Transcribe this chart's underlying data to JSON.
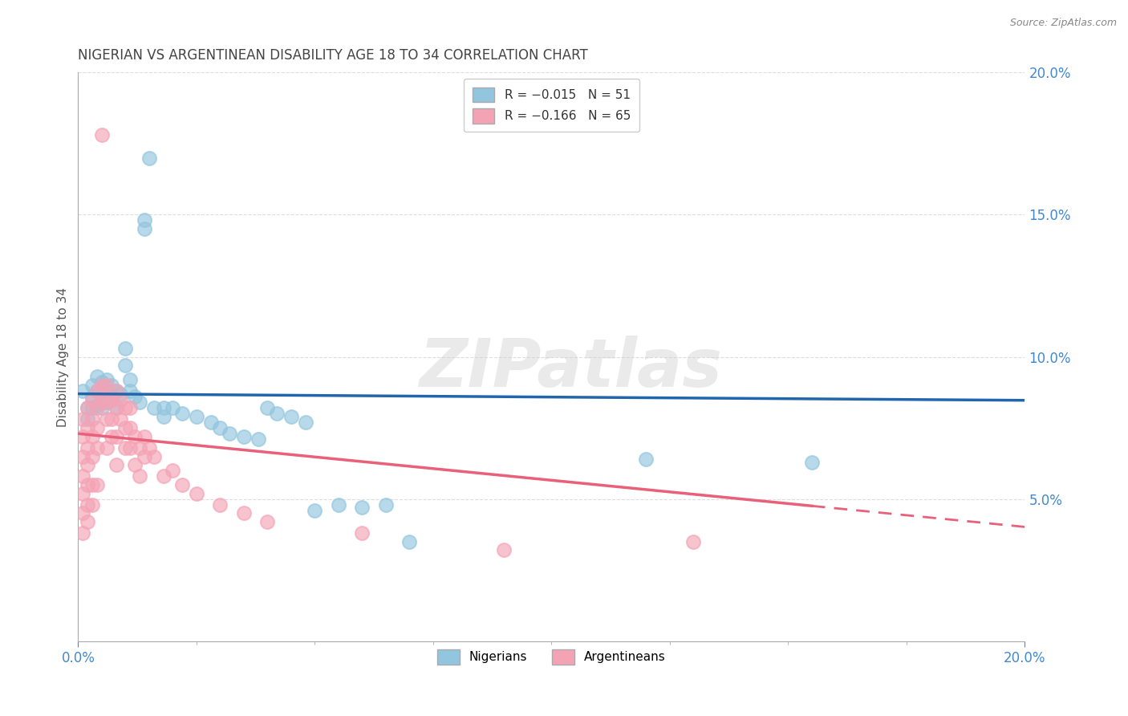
{
  "title": "NIGERIAN VS ARGENTINEAN DISABILITY AGE 18 TO 34 CORRELATION CHART",
  "source": "Source: ZipAtlas.com",
  "ylabel": "Disability Age 18 to 34",
  "xlim": [
    0.0,
    0.2
  ],
  "ylim": [
    0.0,
    0.2
  ],
  "watermark": "ZIPatlas",
  "nigerian_R": -0.015,
  "nigerian_N": 51,
  "argentinean_R": -0.166,
  "argentinean_N": 65,
  "nigerian_points": [
    [
      0.001,
      0.088
    ],
    [
      0.002,
      0.082
    ],
    [
      0.002,
      0.078
    ],
    [
      0.003,
      0.09
    ],
    [
      0.003,
      0.086
    ],
    [
      0.003,
      0.082
    ],
    [
      0.004,
      0.093
    ],
    [
      0.004,
      0.088
    ],
    [
      0.004,
      0.083
    ],
    [
      0.005,
      0.091
    ],
    [
      0.005,
      0.087
    ],
    [
      0.005,
      0.082
    ],
    [
      0.006,
      0.092
    ],
    [
      0.006,
      0.088
    ],
    [
      0.006,
      0.084
    ],
    [
      0.007,
      0.09
    ],
    [
      0.007,
      0.086
    ],
    [
      0.008,
      0.088
    ],
    [
      0.008,
      0.082
    ],
    [
      0.009,
      0.087
    ],
    [
      0.01,
      0.103
    ],
    [
      0.01,
      0.097
    ],
    [
      0.011,
      0.092
    ],
    [
      0.011,
      0.088
    ],
    [
      0.012,
      0.086
    ],
    [
      0.013,
      0.084
    ],
    [
      0.014,
      0.148
    ],
    [
      0.014,
      0.145
    ],
    [
      0.015,
      0.17
    ],
    [
      0.016,
      0.082
    ],
    [
      0.018,
      0.082
    ],
    [
      0.018,
      0.079
    ],
    [
      0.02,
      0.082
    ],
    [
      0.022,
      0.08
    ],
    [
      0.025,
      0.079
    ],
    [
      0.028,
      0.077
    ],
    [
      0.03,
      0.075
    ],
    [
      0.032,
      0.073
    ],
    [
      0.035,
      0.072
    ],
    [
      0.038,
      0.071
    ],
    [
      0.04,
      0.082
    ],
    [
      0.042,
      0.08
    ],
    [
      0.045,
      0.079
    ],
    [
      0.048,
      0.077
    ],
    [
      0.05,
      0.046
    ],
    [
      0.055,
      0.048
    ],
    [
      0.06,
      0.047
    ],
    [
      0.065,
      0.048
    ],
    [
      0.07,
      0.035
    ],
    [
      0.12,
      0.064
    ],
    [
      0.155,
      0.063
    ]
  ],
  "argentinean_points": [
    [
      0.001,
      0.078
    ],
    [
      0.001,
      0.072
    ],
    [
      0.001,
      0.065
    ],
    [
      0.001,
      0.058
    ],
    [
      0.001,
      0.052
    ],
    [
      0.001,
      0.045
    ],
    [
      0.001,
      0.038
    ],
    [
      0.002,
      0.082
    ],
    [
      0.002,
      0.075
    ],
    [
      0.002,
      0.068
    ],
    [
      0.002,
      0.062
    ],
    [
      0.002,
      0.055
    ],
    [
      0.002,
      0.048
    ],
    [
      0.002,
      0.042
    ],
    [
      0.003,
      0.085
    ],
    [
      0.003,
      0.078
    ],
    [
      0.003,
      0.072
    ],
    [
      0.003,
      0.065
    ],
    [
      0.003,
      0.055
    ],
    [
      0.003,
      0.048
    ],
    [
      0.004,
      0.088
    ],
    [
      0.004,
      0.082
    ],
    [
      0.004,
      0.075
    ],
    [
      0.004,
      0.068
    ],
    [
      0.004,
      0.055
    ],
    [
      0.005,
      0.09
    ],
    [
      0.005,
      0.084
    ],
    [
      0.005,
      0.178
    ],
    [
      0.006,
      0.09
    ],
    [
      0.006,
      0.084
    ],
    [
      0.006,
      0.078
    ],
    [
      0.006,
      0.068
    ],
    [
      0.007,
      0.085
    ],
    [
      0.007,
      0.078
    ],
    [
      0.007,
      0.072
    ],
    [
      0.008,
      0.088
    ],
    [
      0.008,
      0.082
    ],
    [
      0.008,
      0.072
    ],
    [
      0.008,
      0.062
    ],
    [
      0.009,
      0.085
    ],
    [
      0.009,
      0.078
    ],
    [
      0.01,
      0.082
    ],
    [
      0.01,
      0.075
    ],
    [
      0.01,
      0.068
    ],
    [
      0.011,
      0.082
    ],
    [
      0.011,
      0.075
    ],
    [
      0.011,
      0.068
    ],
    [
      0.012,
      0.072
    ],
    [
      0.012,
      0.062
    ],
    [
      0.013,
      0.068
    ],
    [
      0.013,
      0.058
    ],
    [
      0.014,
      0.072
    ],
    [
      0.014,
      0.065
    ],
    [
      0.015,
      0.068
    ],
    [
      0.016,
      0.065
    ],
    [
      0.018,
      0.058
    ],
    [
      0.02,
      0.06
    ],
    [
      0.022,
      0.055
    ],
    [
      0.025,
      0.052
    ],
    [
      0.03,
      0.048
    ],
    [
      0.035,
      0.045
    ],
    [
      0.04,
      0.042
    ],
    [
      0.06,
      0.038
    ],
    [
      0.09,
      0.032
    ],
    [
      0.13,
      0.035
    ]
  ],
  "nigerian_line_color": "#2166ac",
  "argentinean_line_color": "#e8607a",
  "nigerian_scatter_color": "#92c5de",
  "argentinean_scatter_color": "#f4a3b5",
  "background_color": "#ffffff",
  "grid_color": "#dddddd",
  "tick_color": "#4488cc",
  "title_color": "#444444",
  "source_color": "#888888",
  "ytick_positions": [
    0.0,
    0.05,
    0.1,
    0.15,
    0.2
  ],
  "ytick_labels": [
    "",
    "5.0%",
    "10.0%",
    "15.0%",
    "20.0%"
  ],
  "xtick_positions": [
    0.0,
    0.2
  ],
  "xtick_labels": [
    "0.0%",
    "20.0%"
  ]
}
